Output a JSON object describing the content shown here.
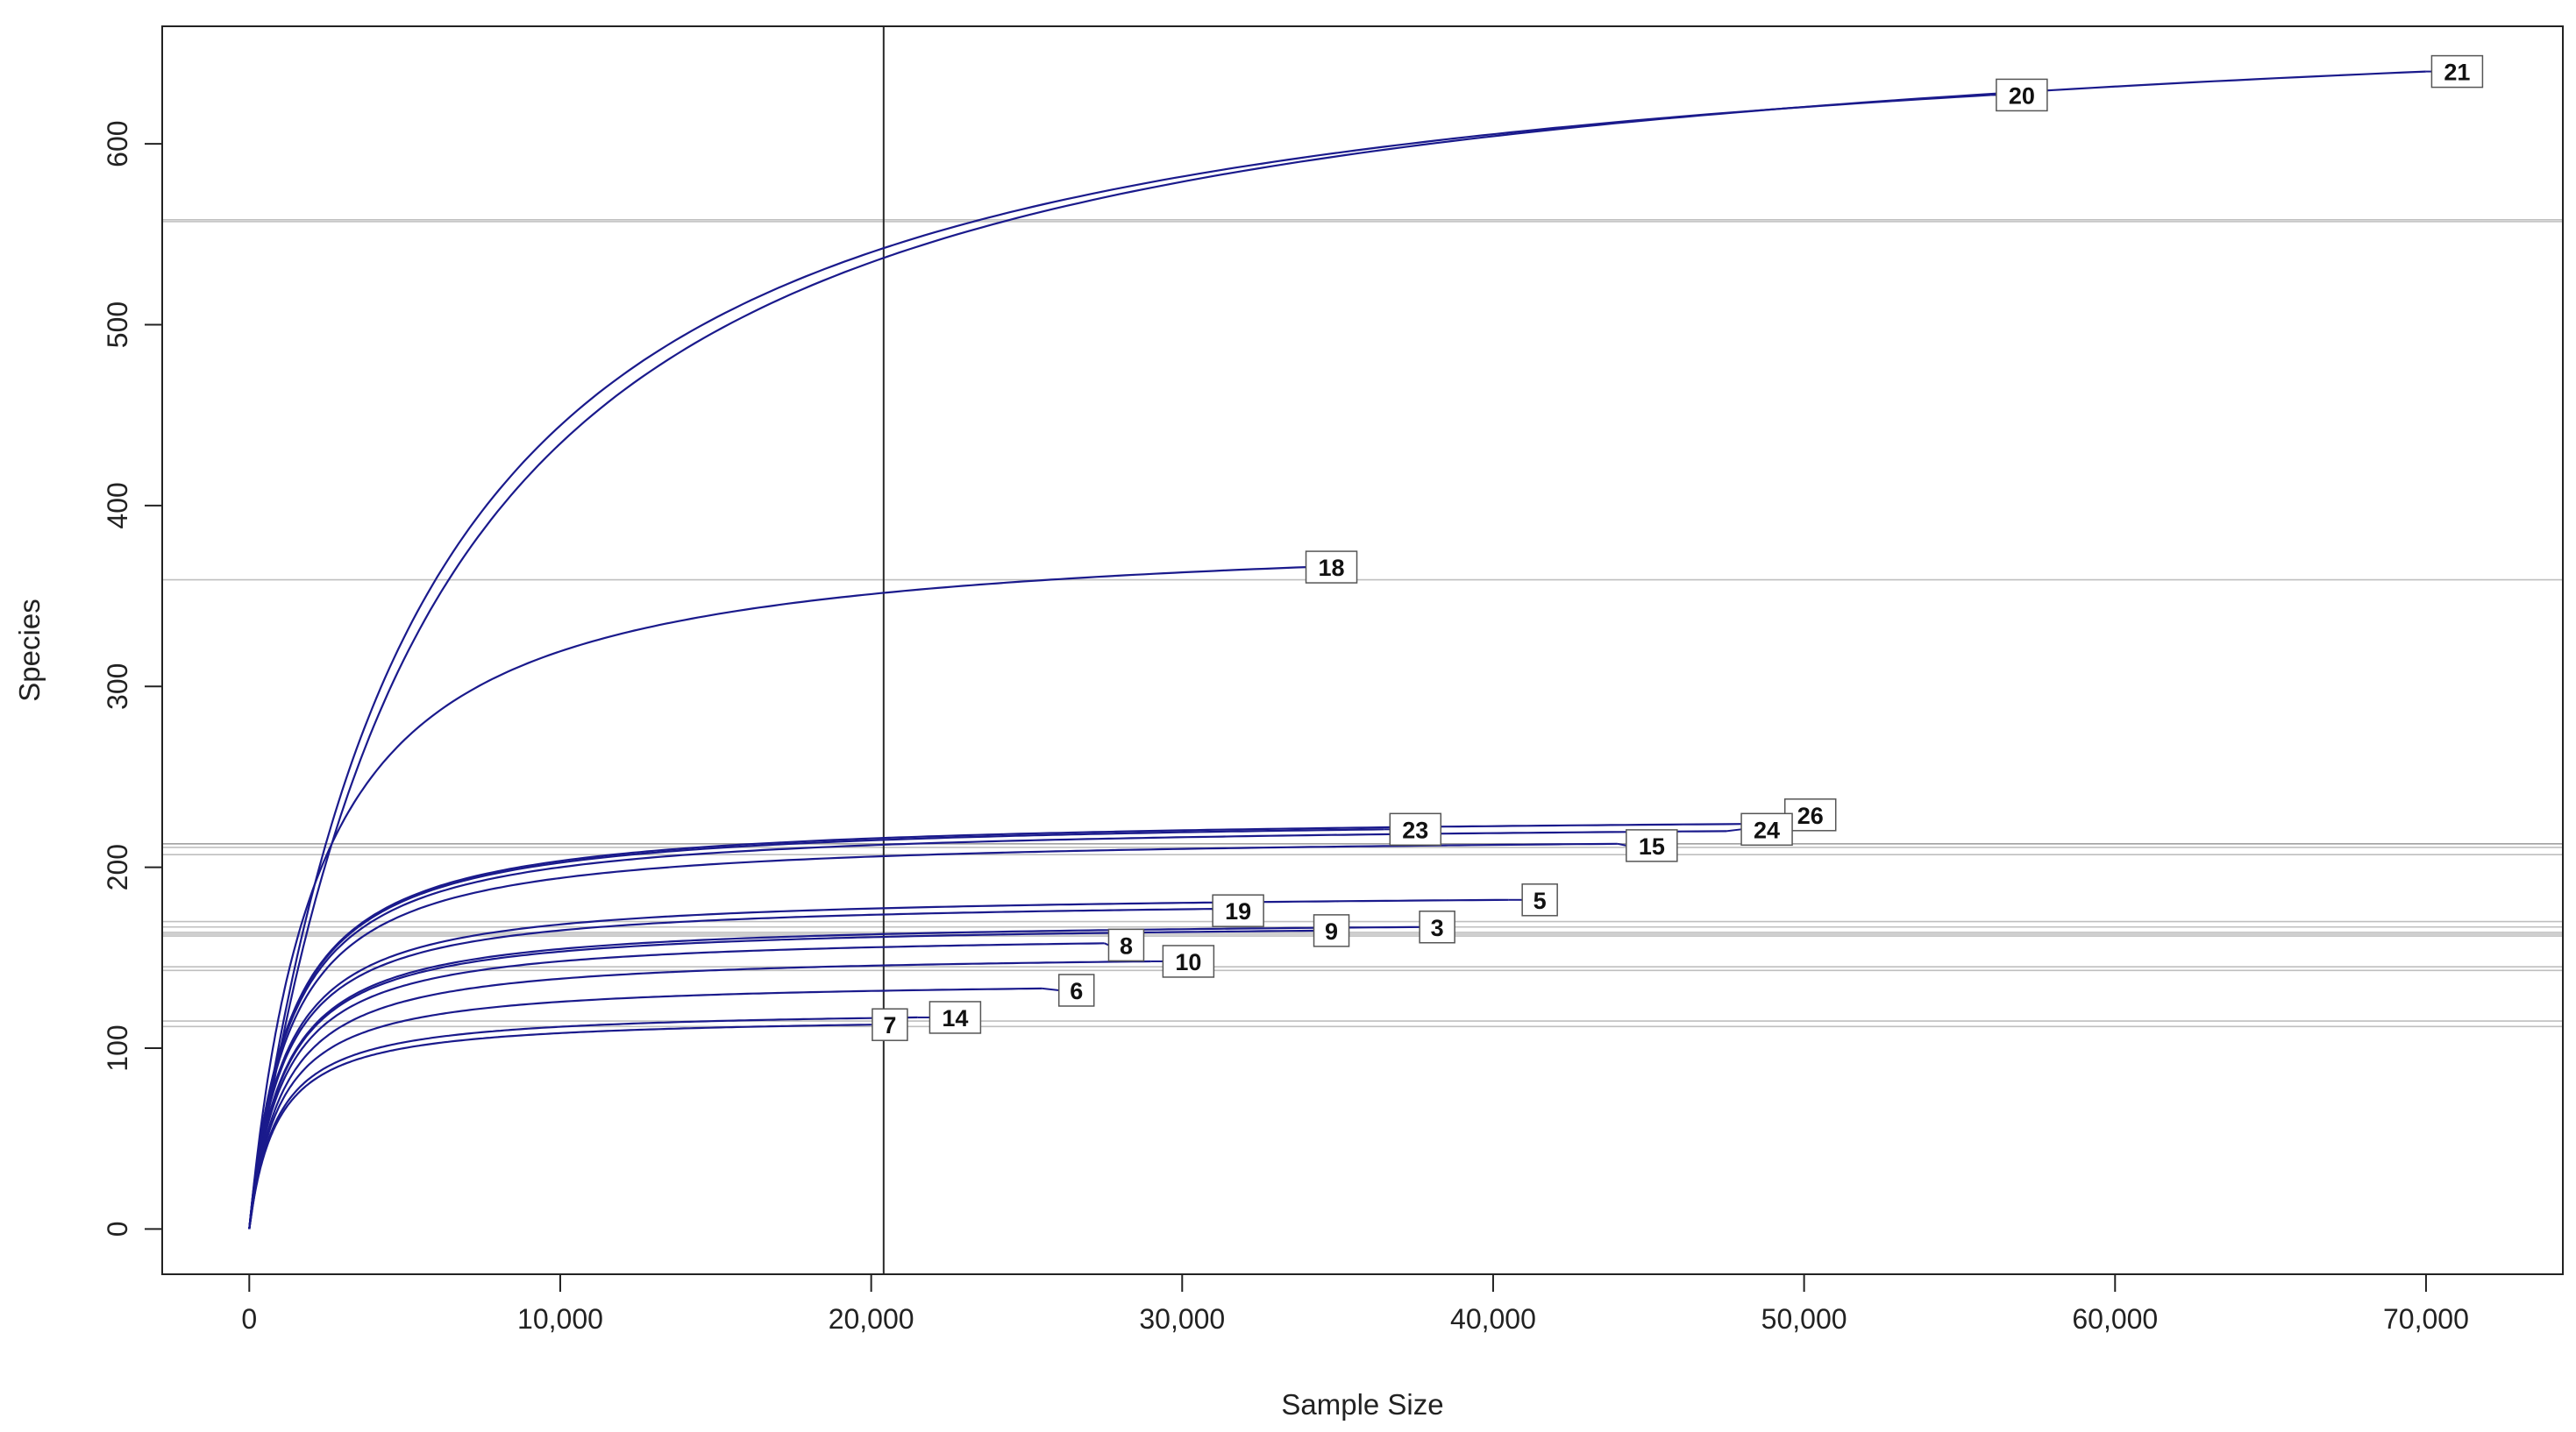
{
  "chart_data": {
    "type": "line",
    "title": "",
    "xlabel": "Sample Size",
    "ylabel": "Species",
    "xlim": [
      -2800,
      74400
    ],
    "ylim": [
      -25,
      665
    ],
    "xticks": [
      0,
      10000,
      20000,
      30000,
      40000,
      50000,
      60000,
      70000
    ],
    "xtick_labels": [
      "0",
      "10,000",
      "20,000",
      "30,000",
      "40,000",
      "50,000",
      "60,000",
      "70,000"
    ],
    "yticks": [
      0,
      100,
      200,
      300,
      400,
      500,
      600
    ],
    "ytick_labels": [
      "0",
      "100",
      "200",
      "300",
      "400",
      "500",
      "600"
    ],
    "grid": false,
    "curve_color": "#1a1a8c",
    "reference_line_color": "#2a2a2a",
    "vertical_reference": 20400,
    "series": [
      {
        "name": "21",
        "n_max": 70000,
        "s_max": 640,
        "curvature": 6000,
        "label_x": 71000,
        "label_y": 640,
        "ref_y": 557
      },
      {
        "name": "20",
        "n_max": 56000,
        "s_max": 627,
        "curvature": 5500,
        "label_x": 57000,
        "label_y": 627,
        "ref_y": 558
      },
      {
        "name": "18",
        "n_max": 34000,
        "s_max": 366,
        "curvature": 2200,
        "label_x": 34800,
        "label_y": 366,
        "ref_y": 359
      },
      {
        "name": "23",
        "n_max": 36500,
        "s_max": 221,
        "curvature": 1300,
        "label_x": 37500,
        "label_y": 221,
        "ref_y": 213
      },
      {
        "name": "26",
        "n_max": 48500,
        "s_max": 224,
        "curvature": 1300,
        "label_x": 50200,
        "label_y": 229,
        "ref_y": 213
      },
      {
        "name": "24",
        "n_max": 47500,
        "s_max": 220,
        "curvature": 1300,
        "label_x": 48800,
        "label_y": 221,
        "ref_y": 211
      },
      {
        "name": "15",
        "n_max": 44000,
        "s_max": 213,
        "curvature": 1300,
        "label_x": 45100,
        "label_y": 212,
        "ref_y": 207
      },
      {
        "name": "5",
        "n_max": 40500,
        "s_max": 182,
        "curvature": 1100,
        "label_x": 41500,
        "label_y": 182,
        "ref_y": 170
      },
      {
        "name": "19",
        "n_max": 31000,
        "s_max": 177,
        "curvature": 1100,
        "label_x": 31800,
        "label_y": 176,
        "ref_y": 167
      },
      {
        "name": "9",
        "n_max": 34500,
        "s_max": 165,
        "curvature": 1100,
        "label_x": 34800,
        "label_y": 165,
        "ref_y": 163
      },
      {
        "name": "3",
        "n_max": 37700,
        "s_max": 167,
        "curvature": 1100,
        "label_x": 38200,
        "label_y": 167,
        "ref_y": 164
      },
      {
        "name": "8",
        "n_max": 27500,
        "s_max": 158,
        "curvature": 1100,
        "label_x": 28200,
        "label_y": 157,
        "ref_y": 162
      },
      {
        "name": "10",
        "n_max": 29000,
        "s_max": 148,
        "curvature": 1100,
        "label_x": 30200,
        "label_y": 148,
        "ref_y": 145
      },
      {
        "name": "6",
        "n_max": 25500,
        "s_max": 133,
        "curvature": 1000,
        "label_x": 26600,
        "label_y": 132,
        "ref_y": 143
      },
      {
        "name": "14",
        "n_max": 21500,
        "s_max": 117,
        "curvature": 900,
        "label_x": 22700,
        "label_y": 117,
        "ref_y": 115
      },
      {
        "name": "7",
        "n_max": 20000,
        "s_max": 113,
        "curvature": 900,
        "label_x": 20600,
        "label_y": 113,
        "ref_y": 112
      }
    ]
  }
}
